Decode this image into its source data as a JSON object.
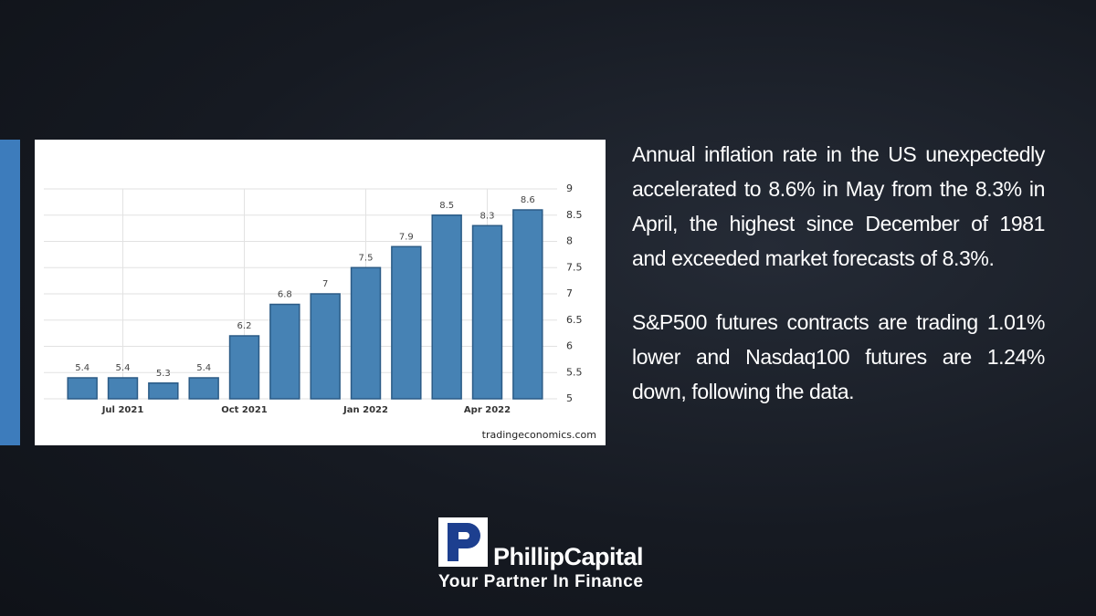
{
  "chart_data": {
    "type": "bar",
    "categories": [
      null,
      "Jul 2021",
      null,
      null,
      "Oct 2021",
      null,
      null,
      "Jan 2022",
      null,
      null,
      "Apr 2022",
      null
    ],
    "values": [
      5.4,
      5.4,
      5.3,
      5.4,
      6.2,
      6.8,
      7,
      7.5,
      7.9,
      8.5,
      8.3,
      8.6
    ],
    "color": "#4682b4",
    "ylim": [
      5,
      9
    ],
    "yticks": [
      5,
      5.5,
      6,
      6.5,
      7,
      7.5,
      8,
      8.5,
      9
    ],
    "grid": true,
    "source": "tradingeconomics.com"
  },
  "article": {
    "paragraphs": [
      "Annual inflation rate in the US unexpectedly accelerated to 8.6% in May from the 8.3% in April, the highest since December of 1981 and exceeded market forecasts of 8.3%.",
      "S&P500 futures contracts are trading 1.01% lower and Nasdaq100 futures are 1.24% down, following the data."
    ]
  },
  "logo": {
    "name": "PhillipCapital",
    "tagline": "Your Partner In Finance"
  }
}
